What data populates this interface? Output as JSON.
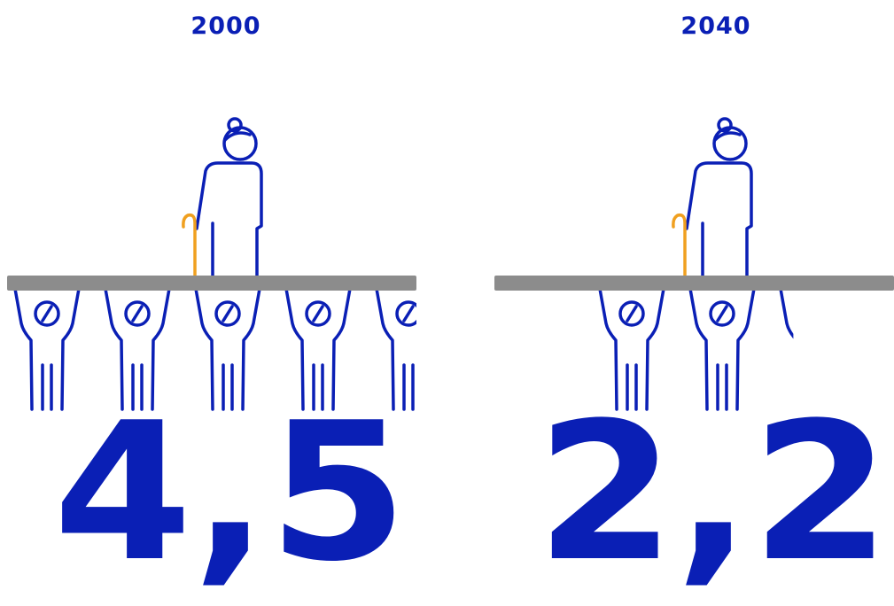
{
  "panels": [
    {
      "year": "2000",
      "value": 4.5,
      "value_label": "4,5"
    },
    {
      "year": "2040",
      "value": 2.2,
      "value_label": "2,2"
    }
  ]
}
